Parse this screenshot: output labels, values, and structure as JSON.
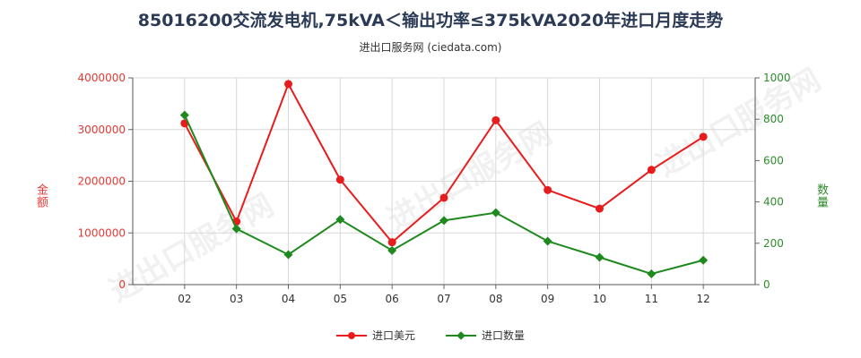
{
  "chart_data": {
    "type": "line",
    "title": "85016200交流发电机,75kVA＜输出功率≤375kVA2020年进口月度走势",
    "subtitle": "进出口服务网 (ciedata.com)",
    "ylabel_left": "金额",
    "ylabel_right": "数量",
    "categories": [
      "02",
      "03",
      "04",
      "05",
      "06",
      "07",
      "08",
      "09",
      "10",
      "11",
      "12"
    ],
    "yticks_left": [
      "0",
      "1000000",
      "2000000",
      "3000000",
      "4000000"
    ],
    "yticks_right": [
      "0",
      "200",
      "400",
      "600",
      "800",
      "1000"
    ],
    "ylim_left": [
      0,
      4000000
    ],
    "ylim_right": [
      0,
      1000
    ],
    "series": [
      {
        "name": "进口美元",
        "axis": "left",
        "color": "#e81c1c",
        "marker": "circle",
        "values": [
          3120000,
          1220000,
          3880000,
          2030000,
          820000,
          1680000,
          3180000,
          1830000,
          1470000,
          2220000,
          2860000
        ]
      },
      {
        "name": "进口数量",
        "axis": "right",
        "color": "#1e8a1e",
        "marker": "diamond",
        "values": [
          820,
          270,
          145,
          315,
          165,
          310,
          348,
          210,
          132,
          52,
          118
        ]
      }
    ],
    "grid": true,
    "legend": "bottom"
  },
  "watermark": "进出口服务网"
}
